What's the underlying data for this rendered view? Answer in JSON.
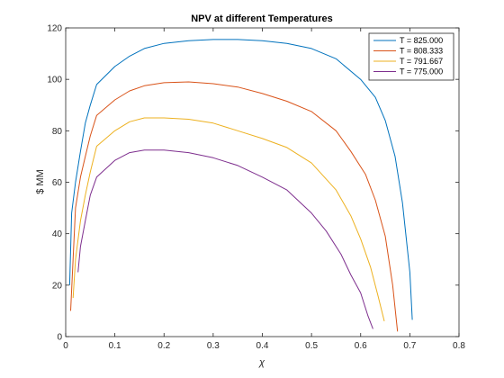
{
  "chart_data": {
    "type": "line",
    "title": "NPV at different Temperatures",
    "xlabel": "χ",
    "ylabel": "$ MM",
    "xlim": [
      0,
      0.8
    ],
    "ylim": [
      0,
      120
    ],
    "xticks": [
      0,
      0.1,
      0.2,
      0.3,
      0.4,
      0.5,
      0.6,
      0.7,
      0.8
    ],
    "xtick_labels": [
      "0",
      "0.1",
      "0.2",
      "0.3",
      "0.4",
      "0.5",
      "0.6",
      "0.7",
      "0.8"
    ],
    "yticks": [
      0,
      20,
      40,
      60,
      80,
      100,
      120
    ],
    "ytick_labels": [
      "0",
      "20",
      "40",
      "60",
      "80",
      "100",
      "120"
    ],
    "grid": false,
    "legend_position": "top-right",
    "series": [
      {
        "name": "T = 825.000",
        "color": "#0072BD",
        "x": [
          0.008,
          0.012,
          0.02,
          0.03,
          0.04,
          0.05,
          0.063,
          0.1,
          0.13,
          0.16,
          0.2,
          0.25,
          0.3,
          0.35,
          0.4,
          0.45,
          0.5,
          0.55,
          0.6,
          0.63,
          0.65,
          0.67,
          0.685,
          0.7,
          0.705
        ],
        "y": [
          20,
          48,
          60,
          72,
          83,
          90,
          98,
          105,
          109,
          112,
          114,
          115,
          115.5,
          115.5,
          115,
          114,
          112,
          108,
          100,
          93,
          84,
          70,
          52,
          25,
          6.5
        ]
      },
      {
        "name": "T = 808.333",
        "color": "#D95319",
        "x": [
          0.01,
          0.015,
          0.02,
          0.03,
          0.04,
          0.05,
          0.063,
          0.1,
          0.13,
          0.16,
          0.2,
          0.25,
          0.3,
          0.35,
          0.4,
          0.45,
          0.5,
          0.55,
          0.58,
          0.61,
          0.63,
          0.65,
          0.665,
          0.675
        ],
        "y": [
          10,
          30,
          50,
          62,
          70,
          78,
          86,
          92,
          95.5,
          97.5,
          98.7,
          99,
          98.3,
          97,
          94.5,
          91.5,
          87.5,
          80,
          72,
          63,
          53,
          39,
          20,
          2
        ]
      },
      {
        "name": "T = 791.667",
        "color": "#EDB120",
        "x": [
          0.015,
          0.02,
          0.03,
          0.04,
          0.05,
          0.063,
          0.1,
          0.13,
          0.16,
          0.2,
          0.25,
          0.3,
          0.35,
          0.4,
          0.45,
          0.5,
          0.55,
          0.58,
          0.6,
          0.62,
          0.635,
          0.648
        ],
        "y": [
          15,
          30,
          45,
          55,
          64,
          74,
          80,
          83.5,
          85,
          85,
          84.5,
          83,
          80,
          77,
          73.5,
          67.5,
          57,
          47,
          38,
          27,
          16,
          6
        ]
      },
      {
        "name": "T = 775.000",
        "color": "#7E2F8E",
        "x": [
          0.025,
          0.03,
          0.04,
          0.05,
          0.063,
          0.1,
          0.13,
          0.16,
          0.18,
          0.2,
          0.25,
          0.3,
          0.35,
          0.4,
          0.45,
          0.5,
          0.53,
          0.56,
          0.58,
          0.6,
          0.615,
          0.625
        ],
        "y": [
          25,
          35,
          45,
          55,
          62,
          68.5,
          71.5,
          72.5,
          72.5,
          72.5,
          71.5,
          69.5,
          66.5,
          62,
          57,
          48,
          41,
          32,
          24,
          17,
          8,
          3
        ]
      }
    ]
  }
}
